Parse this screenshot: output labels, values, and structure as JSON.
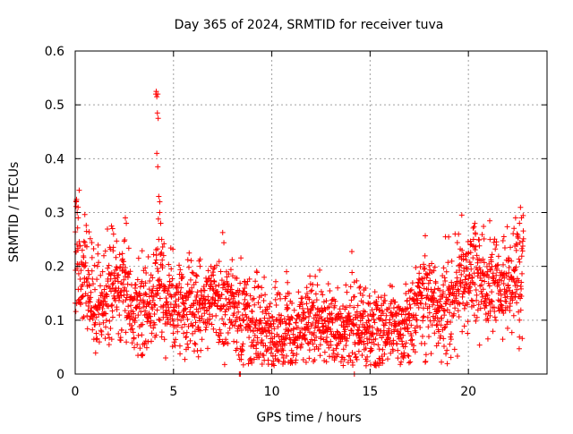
{
  "chart_data": {
    "type": "scatter",
    "title": "Day 365 of 2024, SRMTID for receiver tuva",
    "xlabel": "GPS time / hours",
    "ylabel": "SRMTID / TECUs",
    "xlim": [
      0,
      24
    ],
    "ylim": [
      0,
      0.6
    ],
    "xticks": [
      0,
      5,
      10,
      15,
      20
    ],
    "xtick_labels": [
      "0",
      "5",
      "10",
      "15",
      "20"
    ],
    "yticks": [
      0,
      0.1,
      0.2,
      0.3,
      0.4,
      0.5,
      0.6
    ],
    "ytick_labels": [
      "0",
      "0.1",
      "0.2",
      "0.3",
      "0.4",
      "0.5",
      "0.6"
    ],
    "grid": true,
    "marker": "plus",
    "color": "#ff0000",
    "series": [
      {
        "name": "SRMTID",
        "trend_x": [
          0.0,
          0.2,
          0.5,
          1.0,
          1.5,
          2.0,
          2.5,
          3.0,
          3.5,
          3.9,
          4.2,
          4.6,
          5.0,
          5.5,
          6.0,
          6.5,
          7.0,
          7.5,
          8.0,
          8.5,
          9.0,
          9.5,
          10.0,
          10.5,
          11.0,
          11.5,
          12.0,
          12.5,
          13.0,
          13.5,
          14.0,
          14.5,
          15.0,
          15.5,
          16.0,
          16.5,
          17.0,
          17.3,
          17.6,
          18.0,
          18.5,
          19.0,
          19.5,
          20.0,
          20.5,
          21.0,
          21.5,
          22.0,
          22.5,
          22.8
        ],
        "trend_y": [
          0.27,
          0.23,
          0.19,
          0.14,
          0.14,
          0.17,
          0.16,
          0.12,
          0.11,
          0.12,
          0.17,
          0.14,
          0.13,
          0.12,
          0.13,
          0.12,
          0.14,
          0.13,
          0.12,
          0.1,
          0.09,
          0.09,
          0.08,
          0.07,
          0.08,
          0.09,
          0.1,
          0.09,
          0.09,
          0.08,
          0.09,
          0.09,
          0.08,
          0.08,
          0.09,
          0.08,
          0.09,
          0.12,
          0.15,
          0.14,
          0.12,
          0.13,
          0.17,
          0.18,
          0.19,
          0.17,
          0.17,
          0.16,
          0.18,
          0.21
        ],
        "spikes": [
          {
            "x": 0.05,
            "y": 0.32
          },
          {
            "x": 0.1,
            "y": 0.3
          },
          {
            "x": 0.15,
            "y": 0.29
          },
          {
            "x": 1.9,
            "y": 0.27
          },
          {
            "x": 2.55,
            "y": 0.29
          },
          {
            "x": 2.6,
            "y": 0.28
          },
          {
            "x": 4.1,
            "y": 0.52
          },
          {
            "x": 4.12,
            "y": 0.525
          },
          {
            "x": 4.15,
            "y": 0.515
          },
          {
            "x": 4.2,
            "y": 0.52
          },
          {
            "x": 4.18,
            "y": 0.485
          },
          {
            "x": 4.22,
            "y": 0.475
          },
          {
            "x": 4.15,
            "y": 0.41
          },
          {
            "x": 4.2,
            "y": 0.385
          },
          {
            "x": 4.25,
            "y": 0.33
          },
          {
            "x": 4.3,
            "y": 0.32
          },
          {
            "x": 4.3,
            "y": 0.3
          },
          {
            "x": 4.35,
            "y": 0.28
          },
          {
            "x": 4.4,
            "y": 0.25
          },
          {
            "x": 4.5,
            "y": 0.22
          },
          {
            "x": 6.3,
            "y": 0.21
          },
          {
            "x": 6.35,
            "y": 0.2
          },
          {
            "x": 10.75,
            "y": 0.19
          },
          {
            "x": 10.8,
            "y": 0.17
          },
          {
            "x": 13.35,
            "y": 0.16
          },
          {
            "x": 14.45,
            "y": 0.16
          },
          {
            "x": 14.5,
            "y": 0.15
          },
          {
            "x": 19.5,
            "y": 0.26
          },
          {
            "x": 20.1,
            "y": 0.24
          },
          {
            "x": 21.1,
            "y": 0.25
          },
          {
            "x": 22.4,
            "y": 0.29
          },
          {
            "x": 22.6,
            "y": 0.28
          },
          {
            "x": 22.7,
            "y": 0.29
          },
          {
            "x": 4.6,
            "y": 0.03
          },
          {
            "x": 10.95,
            "y": 0.02
          },
          {
            "x": 16.7,
            "y": 0.03
          },
          {
            "x": 8.35,
            "y": 0.0
          },
          {
            "x": 8.4,
            "y": 0.0
          },
          {
            "x": 14.2,
            "y": 0.0
          }
        ]
      }
    ]
  }
}
